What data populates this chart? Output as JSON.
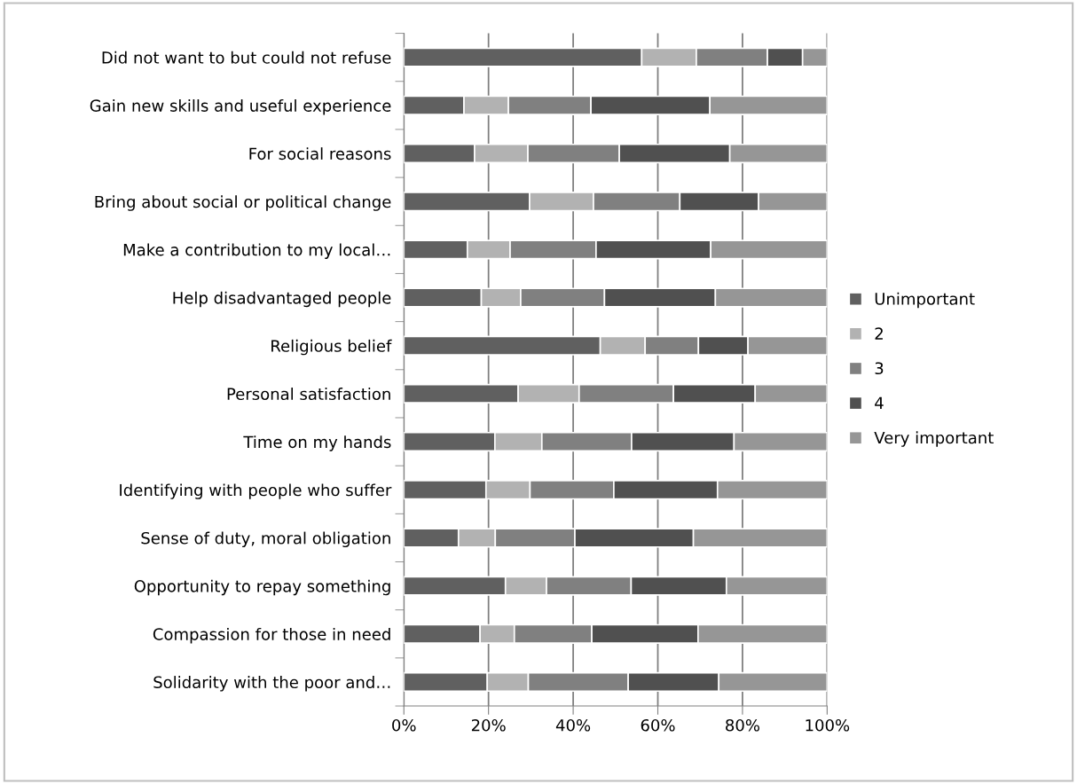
{
  "chart_data": {
    "type": "bar",
    "orientation": "horizontal",
    "stacked": true,
    "categories": [
      "Did not want to but could not refuse",
      "Gain new skills and useful experience",
      "For social reasons",
      "Bring about social or political change",
      "Make a contribution to my local…",
      "Help disadvantaged people",
      "Religious belief",
      "Personal satisfaction",
      "Time on my hands",
      "Identifying with people who suffer",
      "Sense of duty, moral obligation",
      "Opportunity to repay something",
      "Compassion for those in need",
      "Solidarity with the poor and…"
    ],
    "series": [
      {
        "name": "Unimportant",
        "color": "#606060",
        "values": [
          56.2,
          14.2,
          16.7,
          29.7,
          15.0,
          18.3,
          46.4,
          27.0,
          21.5,
          19.4,
          12.9,
          24.0,
          18.0,
          19.7
        ]
      },
      {
        "name": "2",
        "color": "#b2b2b2",
        "values": [
          12.9,
          10.5,
          12.6,
          15.1,
          10.1,
          9.3,
          10.6,
          14.4,
          11.1,
          10.4,
          8.7,
          9.7,
          8.1,
          9.7
        ]
      },
      {
        "name": "3",
        "color": "#808080",
        "values": [
          16.8,
          19.5,
          21.6,
          20.4,
          20.3,
          19.8,
          12.6,
          22.3,
          21.2,
          19.8,
          18.8,
          20.0,
          18.3,
          23.6
        ]
      },
      {
        "name": "4",
        "color": "#505050",
        "values": [
          8.3,
          28.1,
          26.1,
          18.6,
          27.1,
          26.2,
          11.7,
          19.3,
          24.2,
          24.5,
          28.0,
          22.5,
          25.1,
          21.4
        ]
      },
      {
        "name": "Very important",
        "color": "#969696",
        "values": [
          5.8,
          27.7,
          23.0,
          16.2,
          27.5,
          26.4,
          18.7,
          17.0,
          22.0,
          25.9,
          31.6,
          23.8,
          30.5,
          25.6
        ]
      }
    ],
    "xlim": [
      0,
      100
    ],
    "xticks": [
      {
        "value": 0,
        "label": "0%"
      },
      {
        "value": 20,
        "label": "20%"
      },
      {
        "value": 40,
        "label": "40%"
      },
      {
        "value": 60,
        "label": "60%"
      },
      {
        "value": 80,
        "label": "80%"
      },
      {
        "value": 100,
        "label": "100%"
      }
    ],
    "grid": "x",
    "legend": "right"
  }
}
